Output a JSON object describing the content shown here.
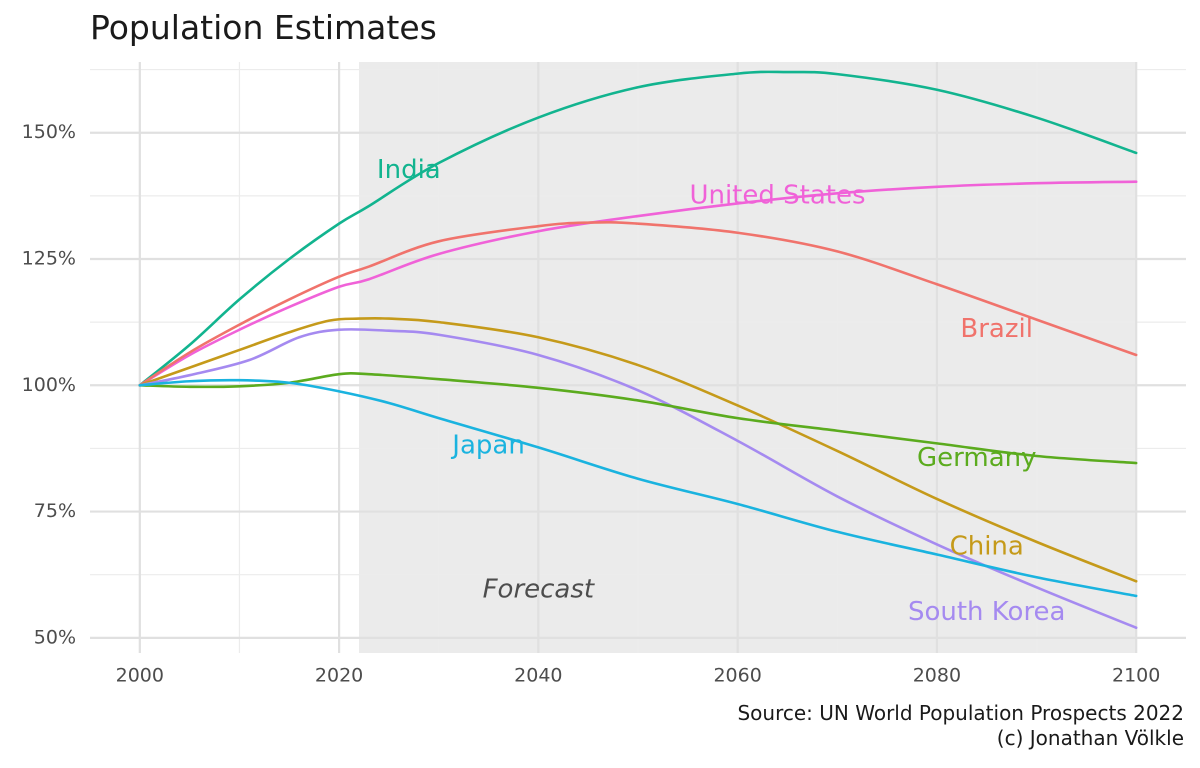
{
  "chart_data": {
    "type": "line",
    "title": "Population Estimates",
    "xlabel": "",
    "ylabel": "",
    "xlim": [
      1995,
      2105
    ],
    "ylim": [
      47,
      164
    ],
    "x_ticks": [
      2000,
      2020,
      2040,
      2060,
      2080,
      2100
    ],
    "y_ticks": [
      50,
      75,
      100,
      125,
      150
    ],
    "y_tick_labels": [
      "50%",
      "75%",
      "100%",
      "125%",
      "150%"
    ],
    "grid": true,
    "forecast_region": {
      "start": 2022,
      "end": 2100,
      "label": "Forecast",
      "label_at": [
        2040,
        59.5
      ]
    },
    "series": [
      {
        "name": "India",
        "color": "#12b48f",
        "label_at": [
          2027,
          142.5
        ],
        "points": [
          [
            2000,
            100
          ],
          [
            2005,
            108
          ],
          [
            2010,
            117
          ],
          [
            2015,
            125
          ],
          [
            2020,
            132
          ],
          [
            2023,
            135.5
          ],
          [
            2030,
            144
          ],
          [
            2040,
            153
          ],
          [
            2050,
            159
          ],
          [
            2060,
            161.7
          ],
          [
            2065,
            162
          ],
          [
            2070,
            161.6
          ],
          [
            2080,
            158.5
          ],
          [
            2090,
            153
          ],
          [
            2100,
            146
          ]
        ]
      },
      {
        "name": "United States",
        "color": "#f062d8",
        "label_at": [
          2064,
          137.5
        ],
        "points": [
          [
            2000,
            100
          ],
          [
            2005,
            106
          ],
          [
            2010,
            111
          ],
          [
            2015,
            115.5
          ],
          [
            2020,
            119.5
          ],
          [
            2023,
            121
          ],
          [
            2030,
            126
          ],
          [
            2040,
            130.5
          ],
          [
            2050,
            133.5
          ],
          [
            2060,
            136
          ],
          [
            2070,
            138
          ],
          [
            2080,
            139.3
          ],
          [
            2090,
            140
          ],
          [
            2100,
            140.3
          ]
        ]
      },
      {
        "name": "Brazil",
        "color": "#f0736c",
        "label_at": [
          2086,
          111
        ],
        "points": [
          [
            2000,
            100
          ],
          [
            2005,
            106.5
          ],
          [
            2010,
            112
          ],
          [
            2015,
            117
          ],
          [
            2020,
            121.5
          ],
          [
            2023,
            123.5
          ],
          [
            2030,
            128.5
          ],
          [
            2040,
            131.5
          ],
          [
            2045,
            132.2
          ],
          [
            2050,
            132
          ],
          [
            2060,
            130.2
          ],
          [
            2070,
            126.5
          ],
          [
            2080,
            120
          ],
          [
            2090,
            113
          ],
          [
            2100,
            106
          ]
        ]
      },
      {
        "name": "China",
        "color": "#c59a1a",
        "label_at": [
          2085,
          68
        ],
        "points": [
          [
            2000,
            100
          ],
          [
            2005,
            103.5
          ],
          [
            2010,
            107
          ],
          [
            2015,
            110.5
          ],
          [
            2019,
            112.8
          ],
          [
            2022,
            113.2
          ],
          [
            2025,
            113.2
          ],
          [
            2030,
            112.5
          ],
          [
            2040,
            109.5
          ],
          [
            2050,
            104
          ],
          [
            2060,
            96
          ],
          [
            2070,
            87
          ],
          [
            2080,
            77.5
          ],
          [
            2090,
            69
          ],
          [
            2100,
            61.2
          ]
        ]
      },
      {
        "name": "South Korea",
        "color": "#a58af0",
        "label_at": [
          2085,
          55
        ],
        "points": [
          [
            2000,
            100
          ],
          [
            2005,
            102
          ],
          [
            2011,
            105
          ],
          [
            2016,
            109.5
          ],
          [
            2020,
            111
          ],
          [
            2025,
            110.8
          ],
          [
            2030,
            110
          ],
          [
            2040,
            106
          ],
          [
            2050,
            99
          ],
          [
            2060,
            89
          ],
          [
            2070,
            78
          ],
          [
            2080,
            68.5
          ],
          [
            2090,
            60
          ],
          [
            2100,
            52
          ]
        ]
      },
      {
        "name": "Germany",
        "color": "#5bab1e",
        "label_at": [
          2084,
          85.5
        ],
        "points": [
          [
            2000,
            100
          ],
          [
            2005,
            99.7
          ],
          [
            2010,
            99.8
          ],
          [
            2015,
            100.5
          ],
          [
            2020,
            102.2
          ],
          [
            2023,
            102.2
          ],
          [
            2030,
            101.2
          ],
          [
            2040,
            99.5
          ],
          [
            2050,
            97
          ],
          [
            2060,
            93.5
          ],
          [
            2070,
            91
          ],
          [
            2080,
            88.5
          ],
          [
            2090,
            86
          ],
          [
            2100,
            84.6
          ]
        ]
      },
      {
        "name": "Japan",
        "color": "#1ab3df",
        "label_at": [
          2035,
          88
        ],
        "points": [
          [
            2000,
            100
          ],
          [
            2005,
            100.8
          ],
          [
            2010,
            101
          ],
          [
            2015,
            100.5
          ],
          [
            2020,
            98.8
          ],
          [
            2025,
            96.5
          ],
          [
            2030,
            93.5
          ],
          [
            2040,
            87.7
          ],
          [
            2050,
            81.5
          ],
          [
            2060,
            76.5
          ],
          [
            2070,
            71
          ],
          [
            2080,
            66.5
          ],
          [
            2090,
            62
          ],
          [
            2100,
            58.3
          ]
        ]
      }
    ]
  },
  "caption": {
    "source": "Source: UN World Population Prospects 2022",
    "credit": "(c) Jonathan Völkle"
  }
}
